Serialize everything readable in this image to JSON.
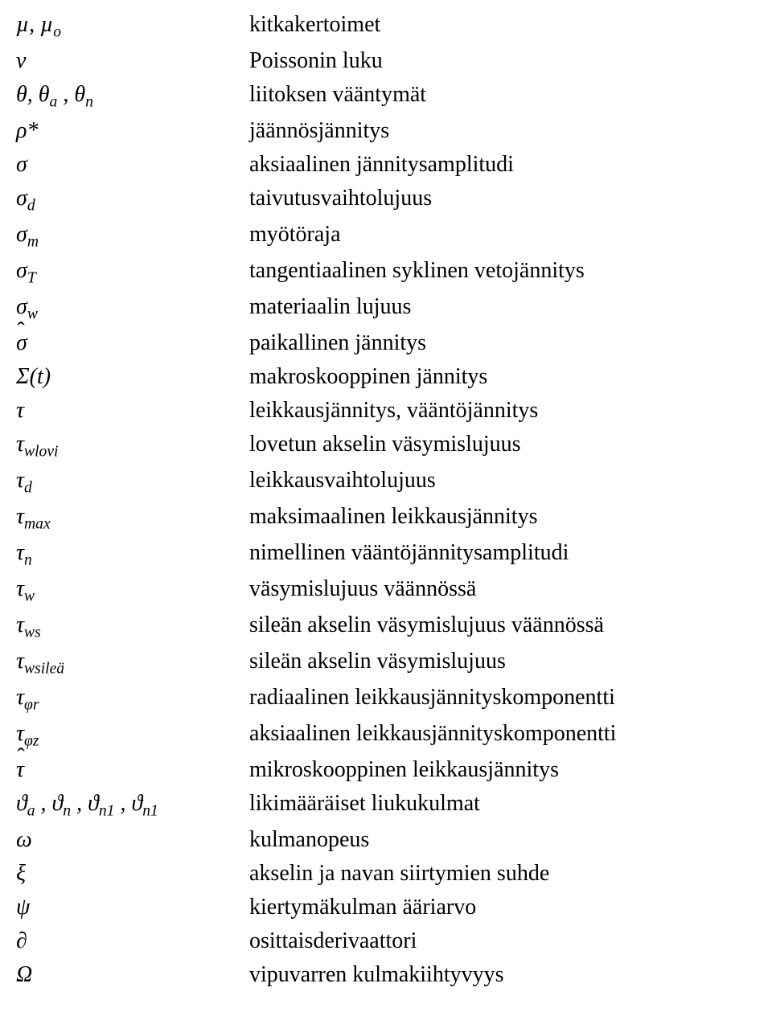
{
  "rows": [
    {
      "sym": "<i>µ, µ<sub>o</sub></i>",
      "desc": "kitkakertoimet"
    },
    {
      "sym": "<i>ν</i>",
      "desc": "Poissonin luku"
    },
    {
      "sym": "<i>θ, θ<sub>a</sub> , θ<sub>n</sub></i>",
      "desc": "liitoksen vääntymät"
    },
    {
      "sym": "<i>ρ*</i>",
      "desc": "jäännösjännitys"
    },
    {
      "sym": "<i>σ</i>",
      "desc": "aksiaalinen jännitysamplitudi"
    },
    {
      "sym": "<i>σ<sub>d</sub></i>",
      "desc": "taivutusvaihtolujuus"
    },
    {
      "sym": "<i>σ<sub>m</sub></i>",
      "desc": "myötöraja"
    },
    {
      "sym": "<i>σ<sub>T</sub></i>",
      "desc": "tangentiaalinen syklinen vetojännitys"
    },
    {
      "sym": "<i>σ<sub>w</sub></i>",
      "desc": "materiaalin lujuus"
    },
    {
      "sym": "<span class='hat'><i>σ</i></span>",
      "desc": "paikallinen jännitys"
    },
    {
      "sym": "<i>Σ(t)</i>",
      "desc": "makroskooppinen jännitys"
    },
    {
      "sym": "<i>τ</i>",
      "desc": "leikkausjännitys, vääntöjännitys"
    },
    {
      "sym": "<i>τ<sub>wlovi</sub></i>",
      "desc": "lovetun akselin väsymislujuus"
    },
    {
      "sym": "<i>τ<sub>d</sub></i>",
      "desc": "leikkausvaihtolujuus"
    },
    {
      "sym": "<i>τ<sub>max</sub></i>",
      "desc": "maksimaalinen leikkausjännitys"
    },
    {
      "sym": "<i>τ<sub>n</sub></i>",
      "desc": "nimellinen vääntöjännitysamplitudi"
    },
    {
      "sym": "<i>τ<sub>w</sub></i>",
      "desc": "väsymislujuus väännössä"
    },
    {
      "sym": "<i>τ<sub>ws</sub></i>",
      "desc": "sileän akselin väsymislujuus väännössä"
    },
    {
      "sym": "<i>τ<sub>wsileä</sub></i>",
      "desc": "sileän akselin väsymislujuus"
    },
    {
      "sym": "<i>τ<sub>φr</sub></i>",
      "desc": "radiaalinen leikkausjännityskomponentti"
    },
    {
      "sym": "<i>τ<sub>φz</sub></i>",
      "desc": "aksiaalinen leikkausjännityskomponentti"
    },
    {
      "sym": "<span class='hat'><i>τ</i></span>",
      "desc": "mikroskooppinen leikkausjännitys"
    },
    {
      "sym": "<i>ϑ<sub>a</sub> , ϑ<sub>n</sub> , ϑ<sub>n1</sub> , ϑ<sub>n1</sub></i>",
      "desc": "likimääräiset liukukulmat"
    },
    {
      "sym": "<i>ω</i>",
      "desc": "kulmanopeus"
    },
    {
      "sym": "<i>ξ</i>",
      "desc": "akselin ja navan siirtymien suhde"
    },
    {
      "sym": "<i>ψ</i>",
      "desc": "kiertymäkulman ääriarvo"
    },
    {
      "sym": "<span class='up'>∂</span>",
      "desc": "osittaisderivaattori"
    },
    {
      "sym": "<i>Ω</i>",
      "desc": "vipuvarren kulmakiihtyvyys"
    }
  ]
}
